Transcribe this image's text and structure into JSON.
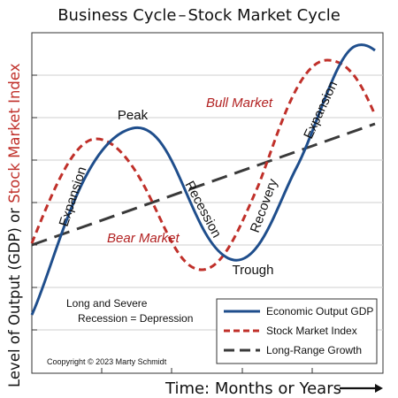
{
  "title_left": "Business Cycle",
  "title_dash": "–",
  "title_right": "Stock Market Cycle",
  "y_label_black_1": "Level of Output (GDP)",
  "y_label_or": " or ",
  "y_label_red": "Stock Market Index",
  "x_label": "Time: Months or Years",
  "annotations": {
    "peak": "Peak",
    "trough": "Trough",
    "expansion_left": "Expansion",
    "expansion_right": "Expansion",
    "recession": "Recession",
    "recovery": "Recovery",
    "bull_market": "Bull Market",
    "bear_market": "Bear Market",
    "depression_line1": "Long and Severe",
    "depression_line2": "Recession = Depression",
    "copyright": "Coopyright © 2023 Marty Schmidt"
  },
  "legend": [
    {
      "label": "Economic Output GDP",
      "color": "#1f4e8c",
      "style": "solid"
    },
    {
      "label": "Stock Market Index",
      "color": "#c0302a",
      "style": "dashed"
    },
    {
      "label": "Long-Range Growth",
      "color": "#3a3a3a",
      "style": "long-dashed"
    }
  ],
  "colors": {
    "gdp": "#1f4e8c",
    "stock": "#c0302a",
    "trend": "#3a3a3a",
    "grid": "#cfcfcf",
    "accent_red": "#c0302a"
  }
}
